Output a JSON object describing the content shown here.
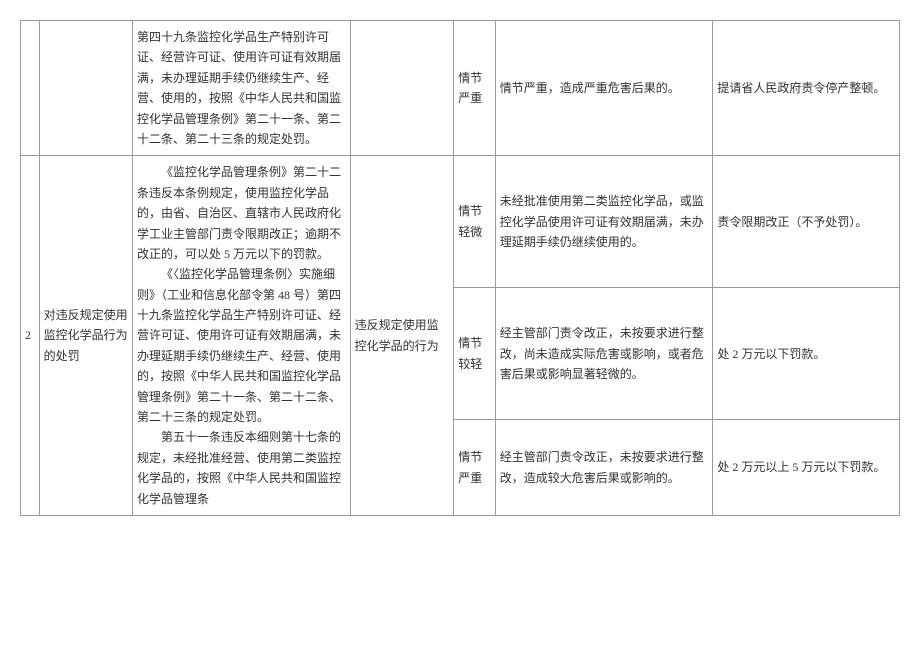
{
  "table": {
    "row1": {
      "col2": "第四十九条监控化学品生产特别许可证、经营许可证、使用许可证有效期届满，未办理延期手续仍继续生产、经营、使用的，按照《中华人民共和国监控化学品管理条例》第二十一条、第二十二条、第二十三条的规定处罚。",
      "col4": "情节严重",
      "col5": "情节严重，造成严重危害后果的。",
      "col6": "提请省人民政府责令停产整顿。"
    },
    "row2": {
      "col0": "2",
      "col1": "对违反规定使用监控化学品行为的处罚",
      "col2_p1": "《监控化学品管理条例》第二十二条违反本条例规定，使用监控化学品的，由省、自治区、直辖市人民政府化学工业主管部门责令限期改正；逾期不改正的，可以处 5 万元以下的罚款。",
      "col2_p2": "《〈监控化学品管理条例〉实施细则》（工业和信息化部令第 48 号）第四十九条监控化学品生产特别许可证、经营许可证、使用许可证有效期届满，未办理延期手续仍继续生产、经营、使用的，按照《中华人民共和国监控化学品管理条例》第二十一条、第二十二条、第二十三条的规定处罚。",
      "col2_p3": "第五十一条违反本细则第十七条的规定，未经批准经营、使用第二类监控化学品的，按照《中华人民共和国监控化学品管理条",
      "col3": "违反规定使用监控化学品的行为",
      "sub1": {
        "col4": "情节轻微",
        "col5": "未经批准使用第二类监控化学品，或监控化学品使用许可证有效期届满，未办理延期手续仍继续使用的。",
        "col6": "责令限期改正（不予处罚）。"
      },
      "sub2": {
        "col4": "情节较轻",
        "col5": "经主管部门责令改正，未按要求进行整改，尚未造成实际危害或影响，或者危害后果或影响显著轻微的。",
        "col6": "处 2 万元以下罚款。"
      },
      "sub3": {
        "col4": "情节严重",
        "col5": "经主管部门责令改正，未按要求进行整改，造成较大危害后果或影响的。",
        "col6": "处 2 万元以上 5 万元以下罚款。"
      }
    }
  }
}
